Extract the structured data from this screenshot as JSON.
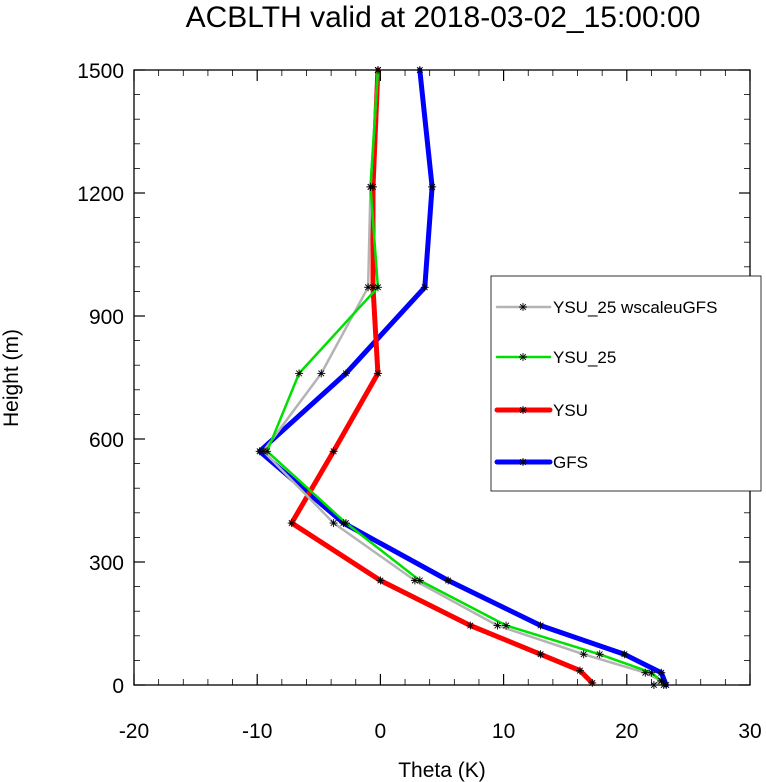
{
  "chart_data": {
    "type": "line",
    "title": "ACBLTH valid at 2018-03-02_15:00:00",
    "xlabel": "Theta (K)",
    "ylabel": "Height (m)",
    "xlim": [
      -20,
      30
    ],
    "ylim": [
      0,
      1500
    ],
    "xticks": [
      -20,
      -10,
      0,
      10,
      20,
      30
    ],
    "yticks": [
      0,
      300,
      600,
      900,
      1200,
      1500
    ],
    "grid": false,
    "legend_position": "right",
    "series": [
      {
        "name": "YSU_25 wscaleuGFS",
        "color": "#b4b4b4",
        "x": [
          22.2,
          22.8,
          21.5,
          16.5,
          9.5,
          2.8,
          -3.8,
          -9.5,
          -4.8,
          -1.0,
          -0.8,
          -0.2
        ],
        "y": [
          0,
          10,
          30,
          75,
          145,
          255,
          395,
          570,
          760,
          970,
          1215,
          1500
        ]
      },
      {
        "name": "YSU_25",
        "color": "#00e000",
        "x": [
          23.0,
          22.8,
          22.0,
          17.8,
          10.2,
          3.2,
          -2.8,
          -9.2,
          -6.6,
          -0.2,
          -0.8,
          -0.2
        ],
        "y": [
          0,
          10,
          30,
          75,
          145,
          255,
          395,
          570,
          760,
          970,
          1215,
          1500
        ]
      },
      {
        "name": "YSU",
        "color": "#ff0000",
        "x": [
          17.2,
          16.2,
          13.0,
          7.3,
          0.0,
          -7.2,
          -3.8,
          -0.2,
          -0.6,
          -0.6,
          -0.2
        ],
        "y": [
          5,
          35,
          75,
          145,
          255,
          395,
          570,
          760,
          970,
          1215,
          1500
        ]
      },
      {
        "name": "GFS",
        "color": "#0000ff",
        "x": [
          23.2,
          22.8,
          19.8,
          13.0,
          5.5,
          -3.0,
          -9.8,
          -2.8,
          3.6,
          4.2,
          3.2
        ],
        "y": [
          0,
          30,
          75,
          145,
          255,
          395,
          570,
          760,
          970,
          1215,
          1500
        ]
      }
    ]
  }
}
